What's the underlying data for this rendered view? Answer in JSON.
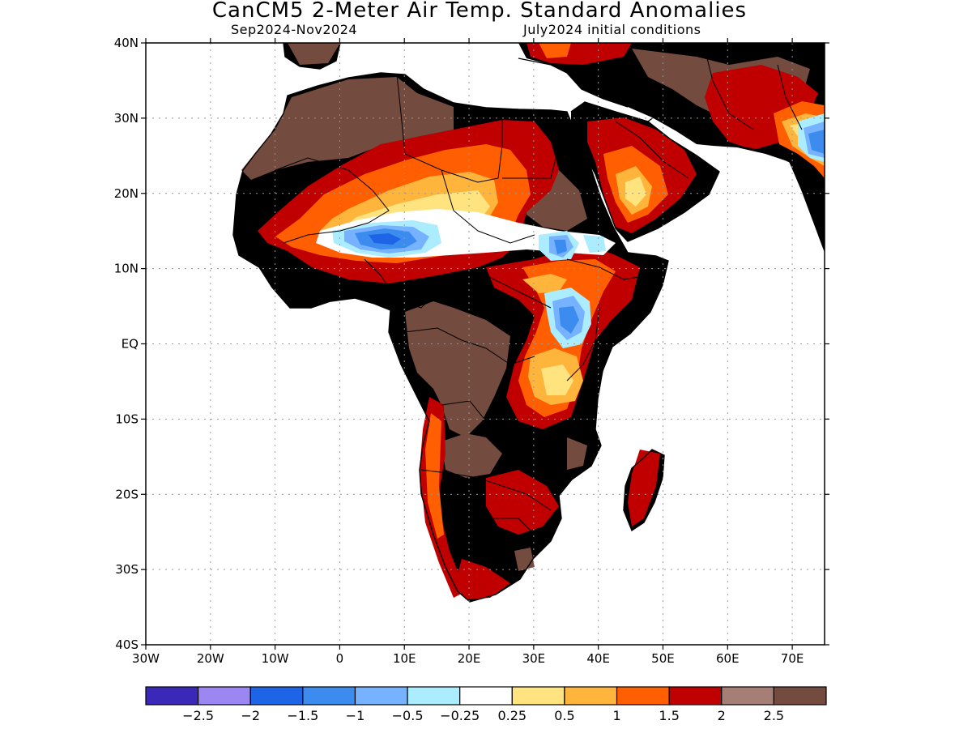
{
  "title": "CanCM5 2-Meter Air Temp. Standard Anomalies",
  "subtitle_left": "Sep2024-Nov2024",
  "subtitle_right": "July2024 initial conditions",
  "map": {
    "lon_range": [
      -30,
      75
    ],
    "lat_range": [
      -40,
      40
    ],
    "grid": true,
    "lat_ticks": [
      {
        "value": 40,
        "label": "40N"
      },
      {
        "value": 30,
        "label": "30N"
      },
      {
        "value": 20,
        "label": "20N"
      },
      {
        "value": 10,
        "label": "10N"
      },
      {
        "value": 0,
        "label": "EQ"
      },
      {
        "value": -10,
        "label": "10S"
      },
      {
        "value": -20,
        "label": "20S"
      },
      {
        "value": -30,
        "label": "30S"
      },
      {
        "value": -40,
        "label": "40S"
      }
    ],
    "lon_ticks": [
      {
        "value": -30,
        "label": "30W"
      },
      {
        "value": -20,
        "label": "20W"
      },
      {
        "value": -10,
        "label": "10W"
      },
      {
        "value": 0,
        "label": "0"
      },
      {
        "value": 10,
        "label": "10E"
      },
      {
        "value": 20,
        "label": "20E"
      },
      {
        "value": 30,
        "label": "30E"
      },
      {
        "value": 40,
        "label": "40E"
      },
      {
        "value": 50,
        "label": "50E"
      },
      {
        "value": 60,
        "label": "60E"
      },
      {
        "value": 70,
        "label": "70E"
      }
    ],
    "colors": {
      "land_base": "#a57f76",
      "dark_brown": "#744b3f",
      "red": "#c00000",
      "orange": "#ff5f00",
      "light_orange": "#ffb43c",
      "yellow": "#ffe37f",
      "white": "#ffffff",
      "cyan": "#acecff",
      "light_blue": "#76b2ff",
      "blue": "#3c8cf0",
      "dark_blue": "#1e64e6",
      "coast": "#000000"
    }
  },
  "colorbar": {
    "colors": [
      "#3a28b8",
      "#9c87f2",
      "#1e64e6",
      "#3c8cf0",
      "#76b2ff",
      "#acecff",
      "#ffffff",
      "#ffe37f",
      "#ffb43c",
      "#ff5f00",
      "#c00000",
      "#a57f76",
      "#744b3f"
    ],
    "labels": [
      "-2.5",
      "-2",
      "-1.5",
      "-1",
      "-0.5",
      "-0.25",
      "0.25",
      "0.5",
      "1",
      "1.5",
      "2",
      "2.5"
    ]
  }
}
